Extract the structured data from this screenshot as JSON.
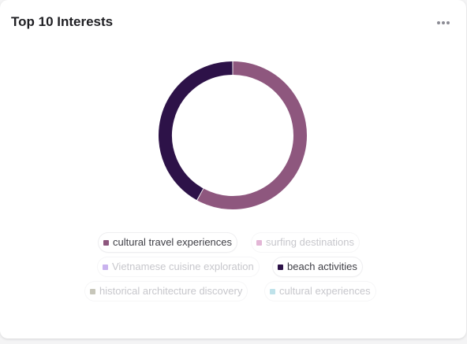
{
  "card": {
    "title": "Top 10 Interests"
  },
  "chart_data": {
    "type": "pie",
    "style": "donut",
    "slices": [
      {
        "label": "cultural travel experiences",
        "value": 58,
        "color": "#8e577e",
        "active": true
      },
      {
        "label": "beach activities",
        "value": 42,
        "color": "#2d1248",
        "active": true
      }
    ],
    "legend": [
      {
        "label": "cultural travel experiences",
        "color": "#8e577e",
        "active": true
      },
      {
        "label": "surfing destinations",
        "color": "#e3b6d6",
        "active": false
      },
      {
        "label": "Vietnamese cuisine exploration",
        "color": "#c9b2ee",
        "active": false
      },
      {
        "label": "beach activities",
        "color": "#2d1248",
        "active": true
      },
      {
        "label": "historical architecture discovery",
        "color": "#c7c6ba",
        "active": false
      },
      {
        "label": "cultural experiences",
        "color": "#bfe2ea",
        "active": false
      }
    ]
  }
}
